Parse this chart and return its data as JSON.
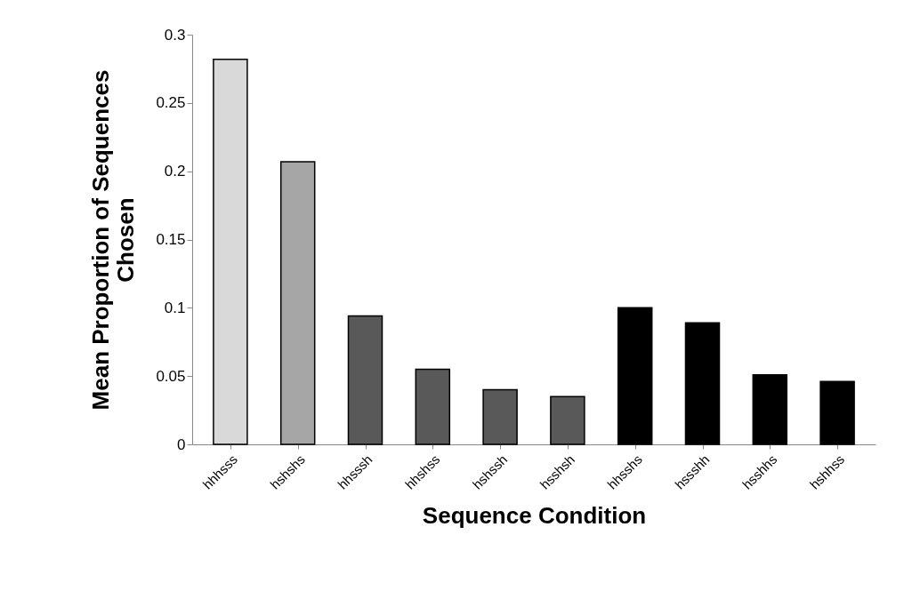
{
  "chart_data": {
    "type": "bar",
    "xlabel": "Sequence Condition",
    "ylabel": "Mean Proportion of Sequences Chosen",
    "categories": [
      "hhhsss",
      "hshshs",
      "hhsssh",
      "hhshss",
      "hshssh",
      "hsshsh",
      "hhsshs",
      "hssshh",
      "hsshhs",
      "hshhss"
    ],
    "values": [
      0.282,
      0.207,
      0.094,
      0.055,
      0.04,
      0.035,
      0.1,
      0.089,
      0.051,
      0.046
    ],
    "colors": [
      "#d9d9d9",
      "#a6a6a6",
      "#595959",
      "#595959",
      "#595959",
      "#595959",
      "#000000",
      "#000000",
      "#000000",
      "#000000"
    ],
    "ylim": [
      0,
      0.3
    ],
    "yticks": [
      0,
      0.05,
      0.1,
      0.15,
      0.2,
      0.25,
      0.3
    ],
    "grid": false
  }
}
